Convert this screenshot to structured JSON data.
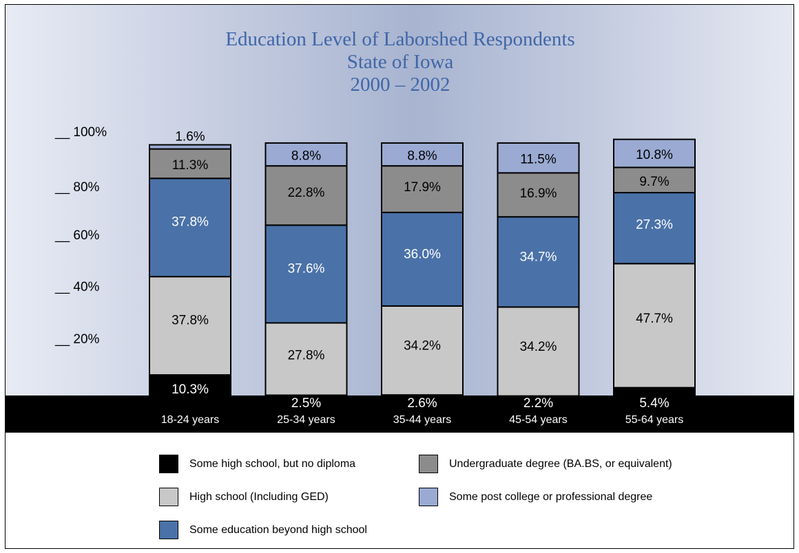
{
  "title_lines": [
    "Education Level of Laborshed Respondents",
    "State of Iowa",
    "2000 – 2002"
  ],
  "y_ticks": [
    "__ 100%",
    "__ 80%",
    "__ 60%",
    "__ 40%",
    "__ 20%",
    "__"
  ],
  "colors": {
    "title": "#3f66a8",
    "some_high_school": "#000000",
    "high_school": "#c8c8c8",
    "some_beyond_hs": "#4a72a8",
    "undergraduate": "#8c8c8c",
    "post_college": "#9aaad2"
  },
  "chart_data": {
    "type": "bar",
    "stacked": true,
    "title": "Education Level of Laborshed Respondents State of Iowa 2000 – 2002",
    "categories": [
      "18-24 years",
      "25-34 years",
      "35-44 years",
      "45-54 years",
      "55-64 years"
    ],
    "ylim": [
      0,
      100
    ],
    "series": [
      {
        "name": "Some high school, but no diploma",
        "color": "#000000",
        "labels": [
          "10.3%",
          "2.5%",
          "2.6%",
          "2.2%",
          "5.4%"
        ],
        "values": [
          10.3,
          2.5,
          2.6,
          2.2,
          5.4
        ]
      },
      {
        "name": "High school (Including GED)",
        "color": "#c8c8c8",
        "labels": [
          "37.8%",
          "27.8%",
          "34.2%",
          "34.2%",
          "47.7%"
        ],
        "values": [
          37.8,
          27.8,
          34.2,
          34.2,
          47.7
        ]
      },
      {
        "name": "Some education beyond high school",
        "color": "#4a72a8",
        "labels": [
          "37.8%",
          "37.6%",
          "36.0%",
          "34.7%",
          "27.3%"
        ],
        "values": [
          37.8,
          37.6,
          36.0,
          34.7,
          27.3
        ]
      },
      {
        "name": "Undergraduate degree (BA.BS, or equivalent)",
        "color": "#8c8c8c",
        "labels": [
          "11.3%",
          "22.8%",
          "17.9%",
          "16.9%",
          "9.7%"
        ],
        "values": [
          11.3,
          22.8,
          17.9,
          16.9,
          9.7
        ]
      },
      {
        "name": "Some post college or professional degree",
        "color": "#9aaad2",
        "labels": [
          "1.6%",
          "8.8%",
          "8.8%",
          "11.5%",
          "10.8%"
        ],
        "values": [
          1.6,
          8.8,
          8.8,
          11.5,
          10.8
        ]
      }
    ]
  }
}
